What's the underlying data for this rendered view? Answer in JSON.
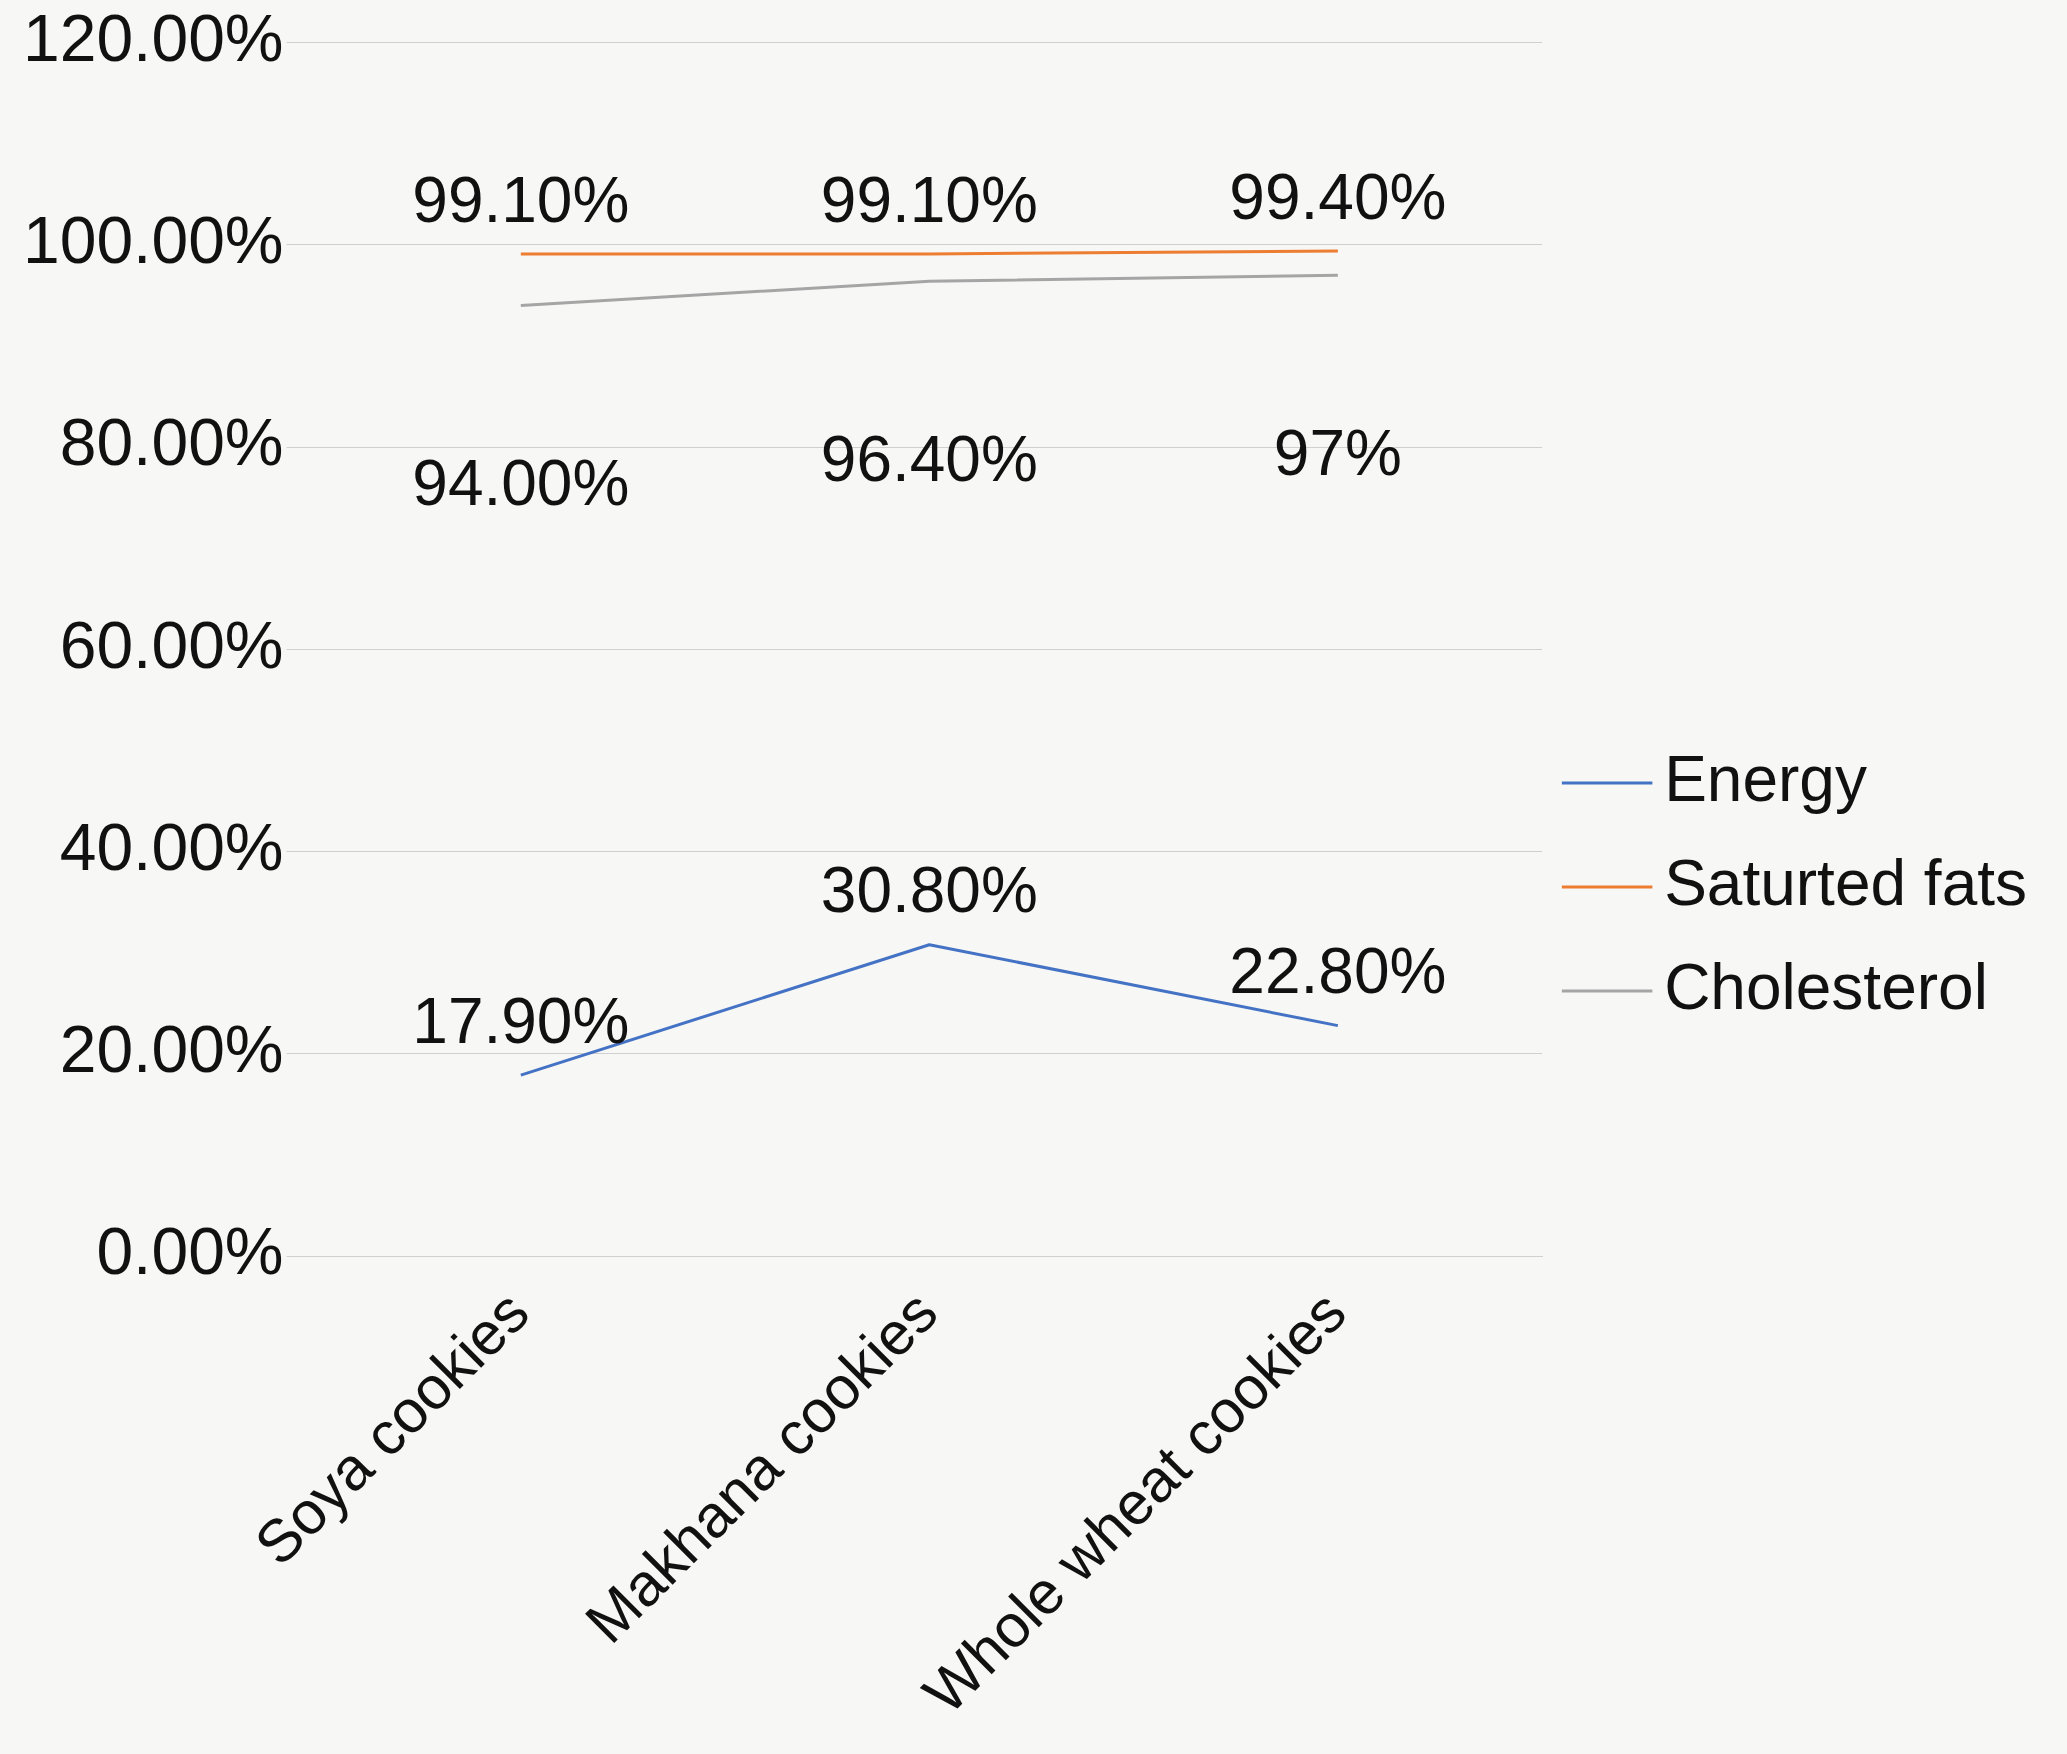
{
  "chart_data": {
    "type": "line",
    "categories": [
      "Soya cookies",
      "Makhana cookies",
      "Whole wheat cookies"
    ],
    "series": [
      {
        "name": "Energy",
        "color": "#4472c4",
        "values": [
          17.9,
          30.8,
          22.8
        ],
        "value_labels": [
          "17.90%",
          "30.80%",
          "22.80%"
        ]
      },
      {
        "name": "Saturted fats",
        "color": "#ed7d31",
        "values": [
          99.1,
          99.1,
          99.4
        ],
        "value_labels": [
          "99.10%",
          "99.10%",
          "99.40%"
        ]
      },
      {
        "name": "Cholesterol",
        "color": "#a5a5a5",
        "values": [
          94.0,
          96.4,
          97
        ],
        "value_labels": [
          "94.00%",
          "96.40%",
          "97%"
        ]
      }
    ],
    "ylim": [
      0,
      120
    ],
    "yticks": [
      {
        "value": 0,
        "label": "0.00%"
      },
      {
        "value": 20,
        "label": "20.00%"
      },
      {
        "value": 40,
        "label": "40.00%"
      },
      {
        "value": 60,
        "label": "60.00%"
      },
      {
        "value": 80,
        "label": "80.00%"
      },
      {
        "value": 100,
        "label": "100.00%"
      },
      {
        "value": 120,
        "label": "120.00%"
      }
    ],
    "grid": "y",
    "legend": "right",
    "marker": "none",
    "line_style": "solid"
  }
}
